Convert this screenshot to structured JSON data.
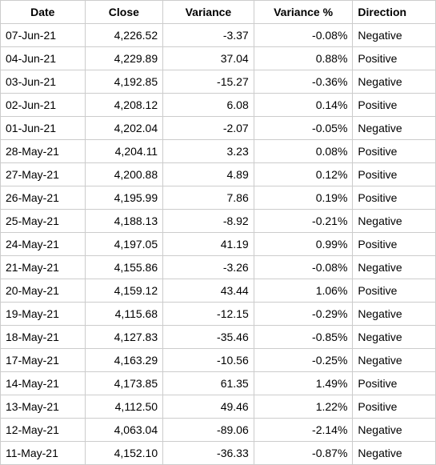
{
  "table": {
    "columns": [
      "Date",
      "Close",
      "Variance",
      "Variance %",
      "Direction"
    ],
    "rows": [
      {
        "date": "07-Jun-21",
        "close": "4,226.52",
        "variance": "-3.37",
        "variance_pct": "-0.08%",
        "direction": "Negative"
      },
      {
        "date": "04-Jun-21",
        "close": "4,229.89",
        "variance": "37.04",
        "variance_pct": "0.88%",
        "direction": "Positive"
      },
      {
        "date": "03-Jun-21",
        "close": "4,192.85",
        "variance": "-15.27",
        "variance_pct": "-0.36%",
        "direction": "Negative"
      },
      {
        "date": "02-Jun-21",
        "close": "4,208.12",
        "variance": "6.08",
        "variance_pct": "0.14%",
        "direction": "Positive"
      },
      {
        "date": "01-Jun-21",
        "close": "4,202.04",
        "variance": "-2.07",
        "variance_pct": "-0.05%",
        "direction": "Negative"
      },
      {
        "date": "28-May-21",
        "close": "4,204.11",
        "variance": "3.23",
        "variance_pct": "0.08%",
        "direction": "Positive"
      },
      {
        "date": "27-May-21",
        "close": "4,200.88",
        "variance": "4.89",
        "variance_pct": "0.12%",
        "direction": "Positive"
      },
      {
        "date": "26-May-21",
        "close": "4,195.99",
        "variance": "7.86",
        "variance_pct": "0.19%",
        "direction": "Positive"
      },
      {
        "date": "25-May-21",
        "close": "4,188.13",
        "variance": "-8.92",
        "variance_pct": "-0.21%",
        "direction": "Negative"
      },
      {
        "date": "24-May-21",
        "close": "4,197.05",
        "variance": "41.19",
        "variance_pct": "0.99%",
        "direction": "Positive"
      },
      {
        "date": "21-May-21",
        "close": "4,155.86",
        "variance": "-3.26",
        "variance_pct": "-0.08%",
        "direction": "Negative"
      },
      {
        "date": "20-May-21",
        "close": "4,159.12",
        "variance": "43.44",
        "variance_pct": "1.06%",
        "direction": "Positive"
      },
      {
        "date": "19-May-21",
        "close": "4,115.68",
        "variance": "-12.15",
        "variance_pct": "-0.29%",
        "direction": "Negative"
      },
      {
        "date": "18-May-21",
        "close": "4,127.83",
        "variance": "-35.46",
        "variance_pct": "-0.85%",
        "direction": "Negative"
      },
      {
        "date": "17-May-21",
        "close": "4,163.29",
        "variance": "-10.56",
        "variance_pct": "-0.25%",
        "direction": "Negative"
      },
      {
        "date": "14-May-21",
        "close": "4,173.85",
        "variance": "61.35",
        "variance_pct": "1.49%",
        "direction": "Positive"
      },
      {
        "date": "13-May-21",
        "close": "4,112.50",
        "variance": "49.46",
        "variance_pct": "1.22%",
        "direction": "Positive"
      },
      {
        "date": "12-May-21",
        "close": "4,063.04",
        "variance": "-89.06",
        "variance_pct": "-2.14%",
        "direction": "Negative"
      },
      {
        "date": "11-May-21",
        "close": "4,152.10",
        "variance": "-36.33",
        "variance_pct": "-0.87%",
        "direction": "Negative"
      }
    ]
  }
}
